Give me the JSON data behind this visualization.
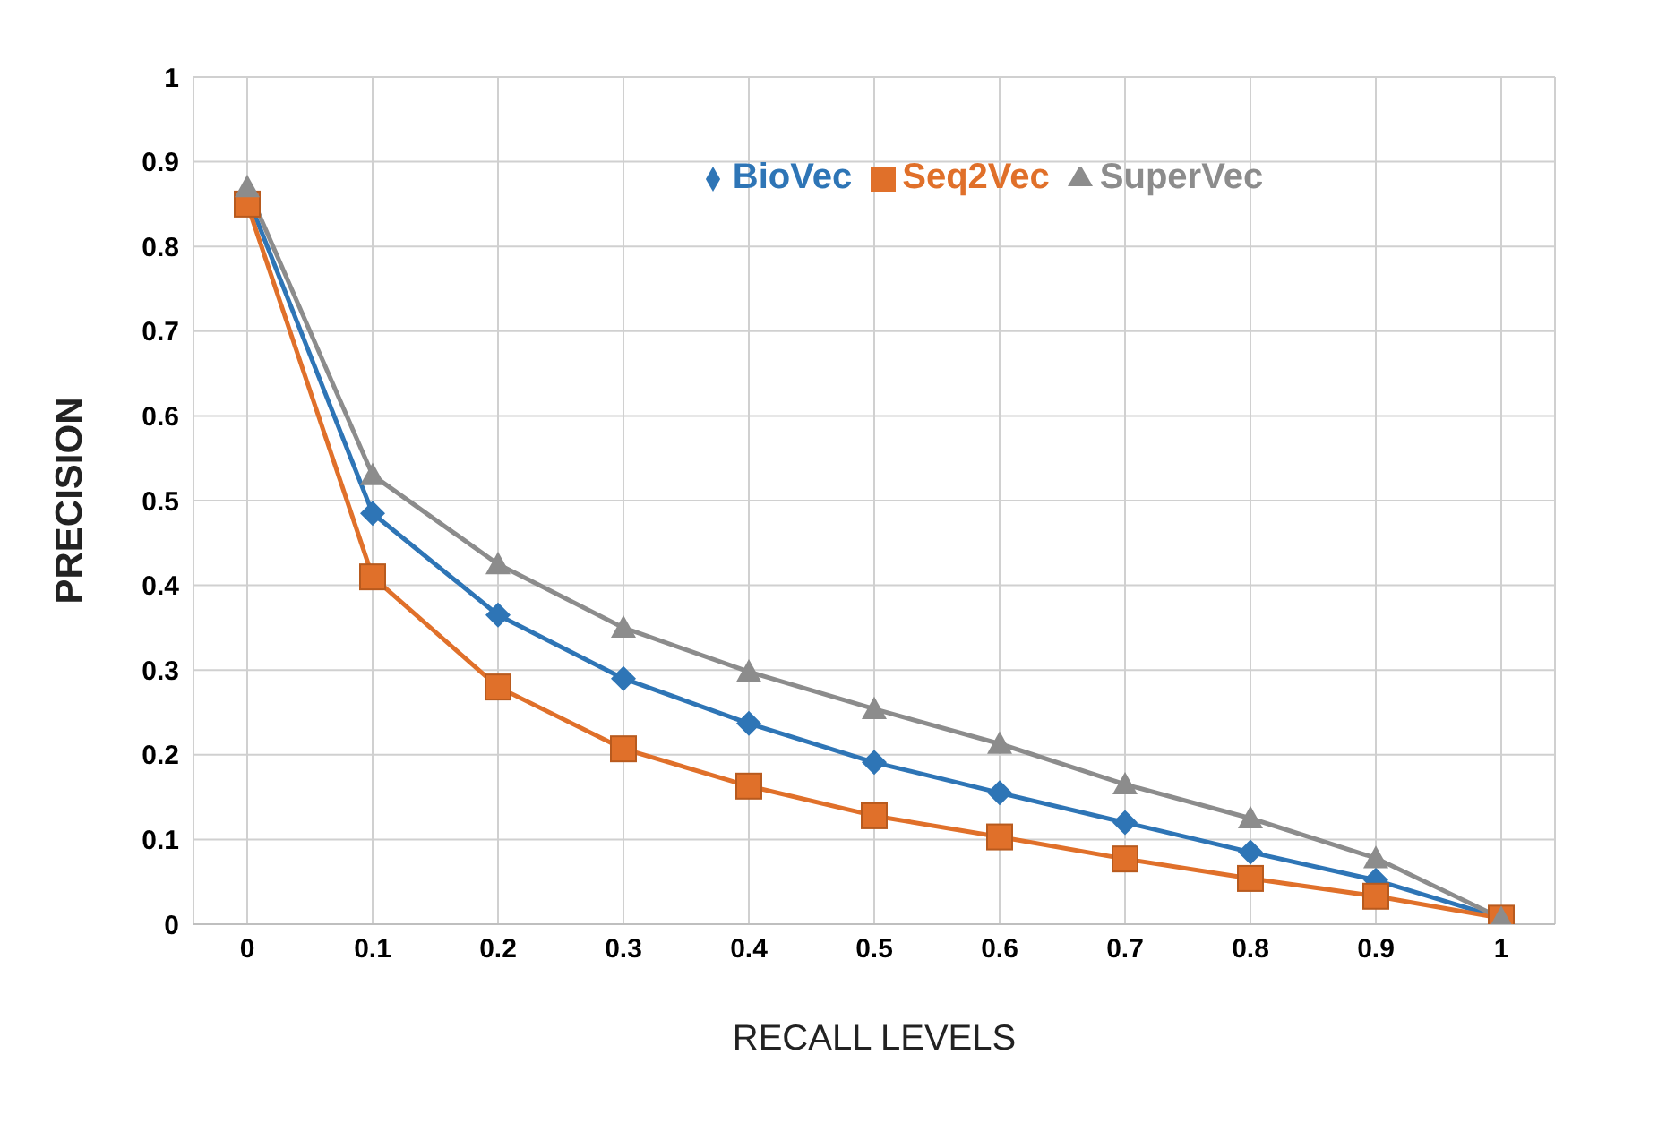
{
  "chart_data": {
    "type": "line",
    "xlabel": "RECALL LEVELS",
    "ylabel": "PRECISION",
    "categories": [
      "0",
      "0.1",
      "0.2",
      "0.3",
      "0.4",
      "0.5",
      "0.6",
      "0.7",
      "0.8",
      "0.9",
      "1"
    ],
    "series": [
      {
        "name": "BioVec",
        "color": "#2e75b6",
        "marker": "diamond",
        "values": [
          0.86,
          0.485,
          0.365,
          0.29,
          0.237,
          0.191,
          0.155,
          0.12,
          0.085,
          0.052,
          0.007
        ]
      },
      {
        "name": "Seq2Vec",
        "color": "#e0702a",
        "marker": "square",
        "values": [
          0.85,
          0.41,
          0.28,
          0.207,
          0.163,
          0.128,
          0.103,
          0.077,
          0.054,
          0.033,
          0.007
        ]
      },
      {
        "name": "SuperVec",
        "color": "#8c8c8c",
        "marker": "triangle",
        "values": [
          0.87,
          0.53,
          0.425,
          0.35,
          0.298,
          0.254,
          0.213,
          0.165,
          0.125,
          0.078,
          0.007
        ]
      }
    ],
    "ylim": [
      0,
      1
    ],
    "yticks": [
      0,
      0.1,
      0.2,
      0.3,
      0.4,
      0.5,
      0.6,
      0.7,
      0.8,
      0.9,
      1
    ],
    "grid": true,
    "legend": "top",
    "line_style": "solid"
  }
}
